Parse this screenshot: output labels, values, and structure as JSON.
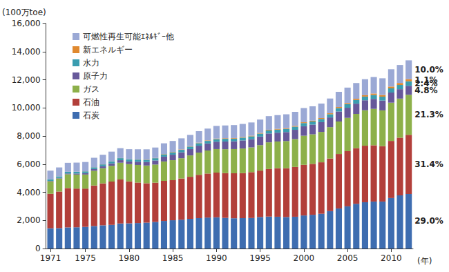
{
  "chart_data": {
    "type": "bar",
    "stacked": true,
    "grid": false,
    "legend": "upper left",
    "y_label": "(100万toe)",
    "x_label": "(年)",
    "categories": [
      "1971",
      null,
      null,
      null,
      "1975",
      null,
      null,
      null,
      null,
      "1980",
      null,
      null,
      null,
      null,
      "1985",
      null,
      null,
      null,
      null,
      "1990",
      null,
      null,
      null,
      null,
      "1995",
      null,
      null,
      null,
      null,
      "2000",
      null,
      null,
      null,
      null,
      "2005",
      null,
      null,
      null,
      null,
      "2010",
      null,
      null
    ],
    "ylim": [
      0,
      16000
    ],
    "yticks": [
      0,
      {
        "value": 2000,
        "label": "2,000"
      },
      {
        "value": 4000,
        "label": "4,000"
      },
      {
        "value": 6000,
        "label": "6,000"
      },
      {
        "value": 8000,
        "label": "8,000"
      },
      {
        "value": 10000,
        "label": "10,000"
      },
      {
        "value": 12000,
        "label": "12,000"
      },
      {
        "value": 14000,
        "label": "14,000"
      },
      {
        "value": 16000,
        "label": "16,000"
      }
    ],
    "series": [
      {
        "name": "石炭",
        "color": "#3e6db0",
        "end_label": "29.0%",
        "values": [
          1440,
          1450,
          1500,
          1510,
          1540,
          1600,
          1650,
          1680,
          1780,
          1790,
          1810,
          1840,
          1890,
          1960,
          2010,
          2050,
          2110,
          2160,
          2200,
          2220,
          2180,
          2150,
          2160,
          2170,
          2240,
          2270,
          2260,
          2240,
          2260,
          2350,
          2400,
          2470,
          2660,
          2850,
          3000,
          3180,
          3290,
          3340,
          3340,
          3590,
          3780,
          3880
        ]
      },
      {
        "name": "石油",
        "color": "#b23f3a",
        "end_label": "31.4%",
        "values": [
          2450,
          2600,
          2800,
          2750,
          2720,
          2880,
          2980,
          3080,
          3130,
          2980,
          2880,
          2800,
          2790,
          2850,
          2850,
          2930,
          2990,
          3080,
          3130,
          3180,
          3180,
          3200,
          3200,
          3260,
          3300,
          3380,
          3450,
          3470,
          3540,
          3600,
          3620,
          3660,
          3740,
          3870,
          3920,
          3960,
          4020,
          4000,
          3940,
          4060,
          4100,
          4200
        ]
      },
      {
        "name": "ガス",
        "color": "#8db04a",
        "end_label": "21.3%",
        "values": [
          890,
          930,
          980,
          1000,
          1000,
          1050,
          1080,
          1120,
          1190,
          1230,
          1250,
          1260,
          1290,
          1380,
          1420,
          1440,
          1520,
          1580,
          1640,
          1670,
          1700,
          1720,
          1750,
          1760,
          1810,
          1900,
          1900,
          1930,
          1980,
          2070,
          2100,
          2160,
          2230,
          2310,
          2370,
          2430,
          2520,
          2590,
          2540,
          2720,
          2780,
          2850
        ]
      },
      {
        "name": "原子力",
        "color": "#67599a",
        "end_label": "4.8%",
        "values": [
          30,
          40,
          55,
          70,
          100,
          120,
          140,
          170,
          180,
          190,
          230,
          250,
          290,
          340,
          390,
          420,
          450,
          490,
          500,
          525,
          550,
          555,
          575,
          585,
          610,
          630,
          625,
          640,
          660,
          675,
          690,
          695,
          690,
          715,
          720,
          730,
          710,
          710,
          700,
          720,
          670,
          640
        ]
      },
      {
        "name": "水力",
        "color": "#3a9db0",
        "end_label": "2.4%",
        "values": [
          105,
          110,
          112,
          122,
          125,
          126,
          130,
          140,
          145,
          150,
          152,
          157,
          163,
          168,
          172,
          176,
          178,
          182,
          182,
          185,
          190,
          190,
          200,
          203,
          212,
          216,
          220,
          222,
          224,
          225,
          222,
          227,
          228,
          242,
          251,
          259,
          262,
          274,
          276,
          296,
          300,
          320
        ]
      },
      {
        "name": "新エネルギー",
        "color": "#e0892f",
        "end_label": "1.1%",
        "values": [
          5,
          5,
          6,
          6,
          7,
          7,
          8,
          9,
          10,
          12,
          14,
          16,
          18,
          22,
          26,
          28,
          30,
          33,
          36,
          38,
          40,
          42,
          44,
          45,
          47,
          48,
          50,
          52,
          55,
          58,
          60,
          64,
          68,
          74,
          80,
          88,
          96,
          108,
          118,
          130,
          140,
          150
        ]
      },
      {
        "name": "可燃性再生可能ｴﾈﾙｷﾞｰ他",
        "color": "#9ba9d5",
        "end_label": "10.0%",
        "values": [
          620,
          630,
          640,
          650,
          660,
          670,
          680,
          690,
          700,
          710,
          720,
          730,
          740,
          760,
          780,
          790,
          800,
          820,
          840,
          900,
          910,
          920,
          930,
          940,
          950,
          970,
          980,
          990,
          1000,
          1010,
          1020,
          1030,
          1050,
          1080,
          1100,
          1120,
          1140,
          1170,
          1190,
          1230,
          1280,
          1340
        ]
      }
    ]
  }
}
